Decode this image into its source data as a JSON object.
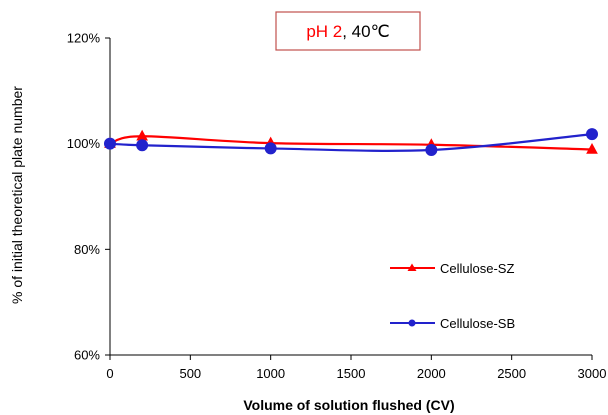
{
  "chart_data": {
    "type": "line",
    "title_parts": {
      "highlight": "pH 2",
      "rest": ", 40℃"
    },
    "xlabel": "Volume of solution flushed (CV)",
    "ylabel": "% of initial theoretical plate number",
    "xlim": [
      0,
      3000
    ],
    "ylim": [
      60,
      120
    ],
    "xticks": [
      0,
      500,
      1000,
      1500,
      2000,
      2500,
      3000
    ],
    "xtick_labels": [
      "0",
      "500",
      "1000",
      "1500",
      "2000",
      "2500",
      "3000"
    ],
    "yticks": [
      60,
      80,
      100,
      120
    ],
    "ytick_labels": [
      "60%",
      "80%",
      "100%",
      "120%"
    ],
    "grid": false,
    "legend_position": "lower-right",
    "series": [
      {
        "name": "Cellulose-SZ",
        "marker": "triangle",
        "color": "#ff0000",
        "x": [
          0,
          200,
          1000,
          2000,
          3000
        ],
        "y": [
          100,
          101.4,
          100.1,
          99.8,
          98.9
        ]
      },
      {
        "name": "Cellulose-SB",
        "marker": "circle",
        "color": "#2222cc",
        "x": [
          0,
          200,
          1000,
          2000,
          3000
        ],
        "y": [
          100,
          99.7,
          99.1,
          98.8,
          101.8
        ]
      }
    ],
    "title_color": "#ff0000",
    "title_box_color": "#c0504d"
  }
}
